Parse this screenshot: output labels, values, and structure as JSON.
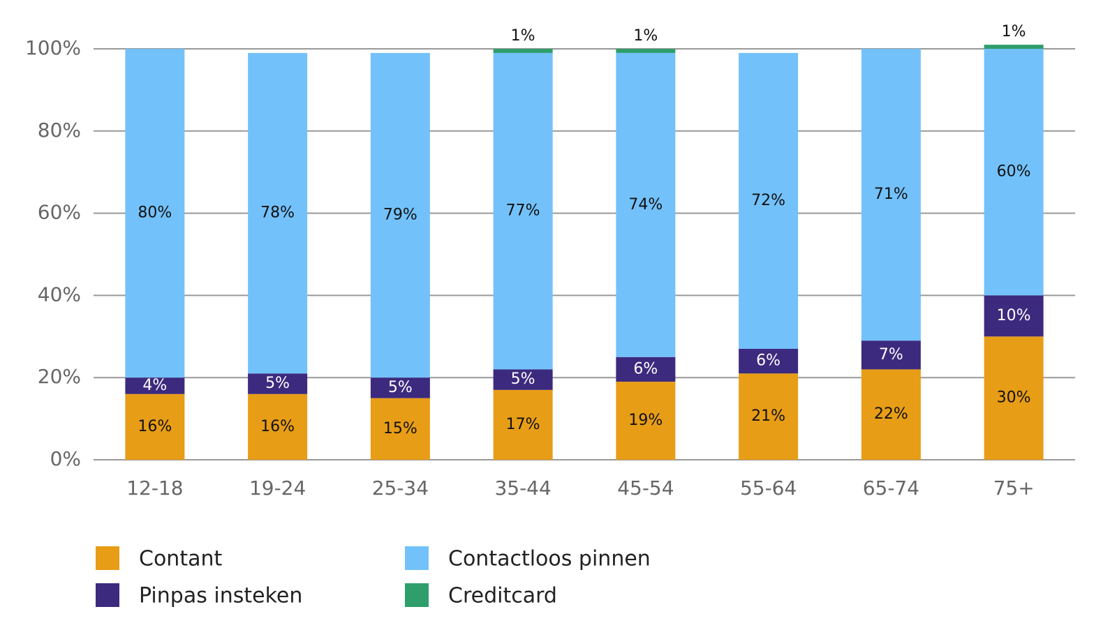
{
  "chart_data": {
    "type": "stacked_bar",
    "categories": [
      "12-18",
      "19-24",
      "25-34",
      "35-44",
      "45-54",
      "55-64",
      "65-74",
      "75+"
    ],
    "series": [
      {
        "name": "Contant",
        "color": "#e89d17",
        "values": [
          16,
          16,
          15,
          17,
          19,
          21,
          22,
          30
        ],
        "value_labels": [
          "16%",
          "16%",
          "15%",
          "17%",
          "19%",
          "21%",
          "22%",
          "30%"
        ]
      },
      {
        "name": "Pinpas insteken",
        "color": "#3c2a7e",
        "values": [
          4,
          5,
          5,
          5,
          6,
          6,
          7,
          10
        ],
        "value_labels": [
          "4%",
          "5%",
          "5%",
          "5%",
          "6%",
          "6%",
          "7%",
          "10%"
        ]
      },
      {
        "name": "Contactloos pinnen",
        "color": "#73c1fa",
        "values": [
          80,
          78,
          79,
          77,
          74,
          72,
          71,
          60
        ],
        "value_labels": [
          "80%",
          "78%",
          "79%",
          "77%",
          "74%",
          "72%",
          "71%",
          "60%"
        ]
      },
      {
        "name": "Creditcard",
        "color": "#2e9e6b",
        "values": [
          null,
          null,
          null,
          1,
          1,
          null,
          null,
          1
        ],
        "value_labels": [
          null,
          null,
          null,
          "1%",
          "1%",
          null,
          null,
          "1%"
        ]
      }
    ],
    "ylim": [
      0,
      100
    ],
    "yticks": [
      {
        "value": 0,
        "label": "0%"
      },
      {
        "value": 20,
        "label": "20%"
      },
      {
        "value": 40,
        "label": "40%"
      },
      {
        "value": 60,
        "label": "60%"
      },
      {
        "value": 80,
        "label": "80%"
      },
      {
        "value": 100,
        "label": "100%"
      }
    ],
    "grid": true
  }
}
